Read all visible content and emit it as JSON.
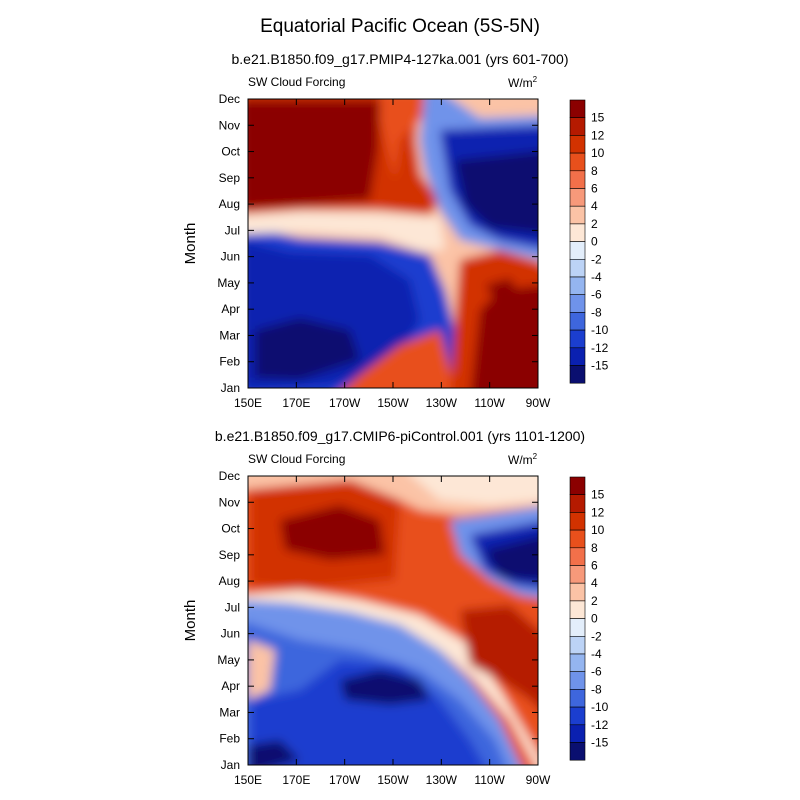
{
  "title": "Equatorial Pacific Ocean (5S-5N)",
  "units_base": "W/m",
  "units_exp": "2",
  "colorbar_levels": [
    "15",
    "12",
    "10",
    "8",
    "6",
    "4",
    "2",
    "0",
    "-2",
    "-4",
    "-6",
    "-8",
    "-10",
    "-12",
    "-15"
  ],
  "colors": {
    "dark_red": "#8b0000",
    "red1": "#b51a00",
    "red2": "#d23200",
    "red3": "#e8501c",
    "orange_red": "#f2704a",
    "salmon": "#f7997a",
    "light_salmon": "#fbc3a6",
    "cream": "#fde7d6",
    "white_blue": "#e3eefb",
    "pale_blue": "#bcd3f6",
    "light_blue": "#94b5f0",
    "mid_blue": "#6f93ea",
    "blue": "#3e66dd",
    "strong_blue": "#1b3ecf",
    "deep_blue": "#0a20b0",
    "navy": "#0a0f70"
  },
  "chart_data": [
    {
      "type": "heatmap",
      "title": "b.e21.B1850.f09_g17.PMIP4-127ka.001 (yrs 601-700)",
      "panel_label": "SW Cloud Forcing",
      "units": "W/m2",
      "xlabel": "",
      "ylabel": "Month",
      "x_ticks": [
        "150E",
        "170E",
        "170W",
        "150W",
        "130W",
        "110W",
        "90W"
      ],
      "y_ticks": [
        "Jan",
        "Feb",
        "Mar",
        "Apr",
        "May",
        "Jun",
        "Jul",
        "Aug",
        "Sep",
        "Oct",
        "Nov",
        "Dec"
      ],
      "x_range_deg": [
        150,
        270
      ],
      "regions": [
        {
          "name": "jan-jun-west",
          "value": -15
        },
        {
          "name": "jan-jun-east",
          "value": 12
        },
        {
          "name": "aug-nov-west",
          "value": 15
        },
        {
          "name": "aug-dec-east",
          "value": -15
        },
        {
          "name": "jul-transition",
          "value": 0
        }
      ]
    },
    {
      "type": "heatmap",
      "title": "b.e21.B1850.f09_g17.CMIP6-piControl.001 (yrs 1101-1200)",
      "panel_label": "SW Cloud Forcing",
      "units": "W/m2",
      "xlabel": "",
      "ylabel": "Month",
      "x_ticks": [
        "150E",
        "170E",
        "170W",
        "150W",
        "130W",
        "110W",
        "90W"
      ],
      "y_ticks": [
        "Jan",
        "Feb",
        "Mar",
        "Apr",
        "May",
        "Jun",
        "Jul",
        "Aug",
        "Sep",
        "Oct",
        "Nov",
        "Dec"
      ],
      "x_range_deg": [
        150,
        270
      ],
      "regions": [
        {
          "name": "jan-jun-west",
          "value": -12
        },
        {
          "name": "apr-central",
          "value": -15
        },
        {
          "name": "sep-nov-west",
          "value": 15
        },
        {
          "name": "diagonal-band",
          "value": 8
        },
        {
          "name": "may-jun-east",
          "value": 15
        },
        {
          "name": "aug-sep-east",
          "value": -15
        }
      ]
    }
  ]
}
